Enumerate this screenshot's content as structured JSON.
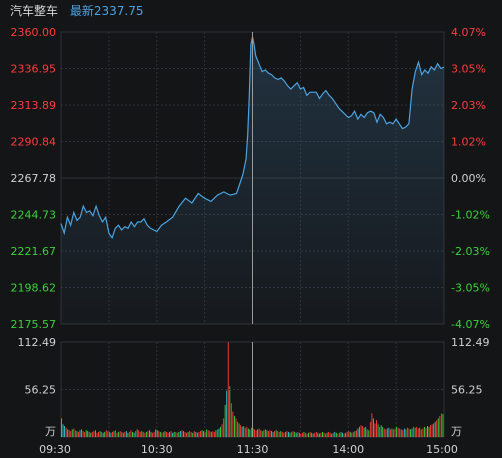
{
  "header": {
    "name": "汽车整车",
    "latest": "最新2337.75"
  },
  "colors": {
    "background": "#141517",
    "grid": "#2f3136",
    "up": "#ff3b3b",
    "down": "#3ad13a",
    "neutral": "#d0d0d0",
    "line": "#4aa3e0",
    "cyan_bar": "#2ec6c6"
  },
  "chart_data": [
    {
      "type": "line",
      "title": "汽车整车",
      "y_left_ticks": [
        "2360.00",
        "2336.95",
        "2313.89",
        "2290.84",
        "2267.78",
        "2244.73",
        "2221.67",
        "2198.62",
        "2175.57"
      ],
      "y_right_ticks": [
        "4.07%",
        "3.05%",
        "2.03%",
        "1.02%",
        "0.00%",
        "-1.02%",
        "-2.03%",
        "-3.05%",
        "-4.07%"
      ],
      "ylim": [
        2175.57,
        2360.0
      ],
      "base": 2267.78,
      "x_ticks": [
        "09:30",
        "10:30",
        "11:30",
        "14:00",
        "15:00"
      ],
      "minutes_total": 240,
      "series": [
        {
          "x": [
            0,
            2,
            4,
            6,
            8,
            10,
            12,
            14,
            16,
            18,
            20,
            22,
            24,
            26,
            28,
            30,
            32,
            34,
            36,
            38,
            40,
            42,
            44,
            46,
            48,
            50,
            52,
            54,
            56,
            58,
            60,
            63,
            66,
            70,
            74,
            78,
            82,
            86,
            90,
            94,
            98,
            102,
            106,
            110,
            112,
            114,
            116,
            117,
            118,
            119,
            120,
            121,
            122,
            124,
            126,
            128,
            130,
            132,
            134,
            136,
            138,
            140,
            142,
            144,
            146,
            148,
            150,
            152,
            154,
            156,
            158,
            160,
            162,
            164,
            166,
            168,
            170,
            172,
            174,
            176,
            178,
            180,
            182,
            184,
            186,
            188,
            190,
            192,
            194,
            196,
            198,
            200,
            202,
            204,
            206,
            208,
            210,
            212,
            214,
            216,
            218,
            220,
            222,
            224,
            226,
            228,
            230,
            232,
            234,
            236,
            238,
            240
          ],
          "values": [
            2239,
            2233,
            2243,
            2238,
            2246,
            2241,
            2243,
            2250,
            2246,
            2247,
            2244,
            2250,
            2244,
            2240,
            2243,
            2233,
            2230,
            2236,
            2238,
            2235,
            2237,
            2236,
            2240,
            2237,
            2240,
            2240,
            2242,
            2238,
            2236,
            2235,
            2234,
            2238,
            2240,
            2243,
            2250,
            2255,
            2252,
            2258,
            2255,
            2253,
            2257,
            2259,
            2257,
            2258,
            2264,
            2270,
            2280,
            2295,
            2320,
            2352,
            2357,
            2352,
            2345,
            2340,
            2335,
            2336,
            2334,
            2333,
            2331,
            2330,
            2331,
            2329,
            2326,
            2324,
            2326,
            2328,
            2324,
            2325,
            2320,
            2322,
            2322,
            2322,
            2318,
            2321,
            2323,
            2320,
            2318,
            2315,
            2312,
            2310,
            2308,
            2306,
            2307,
            2310,
            2305,
            2308,
            2306,
            2309,
            2310,
            2309,
            2303,
            2308,
            2306,
            2302,
            2303,
            2302,
            2305,
            2302,
            2299,
            2300,
            2302,
            2324,
            2335,
            2341,
            2333,
            2336,
            2334,
            2338,
            2336,
            2340,
            2337,
            2337.75
          ]
        }
      ]
    },
    {
      "type": "bar",
      "title": "",
      "y_ticks": [
        "112.49",
        "56.25"
      ],
      "y_unit": "万",
      "ylim": [
        0,
        112.49
      ],
      "x_ticks": [
        "09:30",
        "10:30",
        "11:30",
        "14:00",
        "15:00"
      ],
      "minutes_total": 240,
      "values": [
        22,
        15,
        13,
        11,
        9,
        8,
        7,
        9,
        10,
        8,
        7,
        6,
        8,
        9,
        7,
        6,
        8,
        7,
        6,
        5,
        6,
        7,
        8,
        5,
        6,
        7,
        6,
        5,
        6,
        8,
        7,
        6,
        5,
        6,
        7,
        8,
        5,
        6,
        7,
        6,
        5,
        6,
        7,
        5,
        6,
        8,
        6,
        5,
        7,
        9,
        8,
        6,
        7,
        6,
        5,
        6,
        7,
        8,
        6,
        5,
        6,
        9,
        8,
        7,
        6,
        5,
        6,
        7,
        6,
        5,
        6,
        7,
        5,
        6,
        6,
        5,
        6,
        7,
        8,
        7,
        6,
        5,
        6,
        7,
        6,
        5,
        7,
        6,
        5,
        6,
        7,
        8,
        7,
        6,
        9,
        8,
        7,
        6,
        7,
        6,
        8,
        9,
        10,
        12,
        15,
        22,
        38,
        55,
        112,
        60,
        40,
        30,
        25,
        22,
        18,
        16,
        14,
        12,
        13,
        11,
        12,
        10,
        9,
        11,
        10,
        9,
        8,
        9,
        10,
        8,
        7,
        8,
        9,
        8,
        7,
        8,
        7,
        6,
        7,
        8,
        7,
        6,
        7,
        6,
        5,
        6,
        7,
        6,
        5,
        6,
        7,
        6,
        5,
        6,
        5,
        4,
        5,
        6,
        5,
        4,
        5,
        6,
        5,
        4,
        5,
        6,
        5,
        4,
        5,
        6,
        5,
        4,
        5,
        6,
        5,
        4,
        5,
        6,
        5,
        4,
        5,
        6,
        5,
        4,
        5,
        6,
        7,
        6,
        5,
        6,
        7,
        8,
        10,
        12,
        14,
        13,
        11,
        12,
        9,
        8,
        18,
        28,
        22,
        16,
        20,
        15,
        12,
        14,
        12,
        10,
        9,
        10,
        11,
        9,
        10,
        9,
        10,
        12,
        11,
        10,
        9,
        8,
        10,
        9,
        11,
        10,
        9,
        10,
        12,
        11,
        12,
        10,
        11,
        9,
        10,
        12,
        11,
        13,
        12,
        14,
        15,
        16,
        18,
        20,
        22,
        25,
        28,
        27
      ]
    }
  ]
}
